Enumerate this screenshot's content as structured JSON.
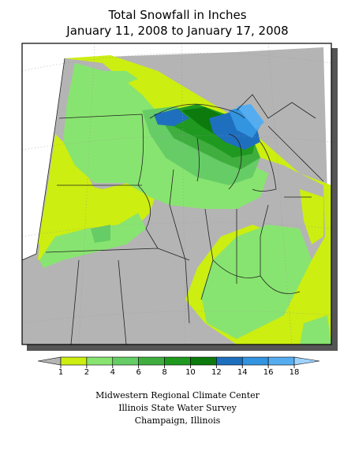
{
  "header": {
    "title": "Total Snowfall in Inches",
    "subtitle": "January 11, 2008 to January 17, 2008"
  },
  "legend": {
    "ticks": [
      1,
      2,
      4,
      6,
      8,
      10,
      12,
      14,
      16,
      18
    ],
    "colors": [
      "#b4b4b4",
      "#ccee11",
      "#88e470",
      "#66cc66",
      "#3fae3f",
      "#1f991f",
      "#0c7a0c",
      "#1f6fbf",
      "#3394e0",
      "#55adf0",
      "#9fd3ff"
    ]
  },
  "credits": [
    "Midwestern Regional Climate Center",
    "Illinois State Water Survey",
    "Champaign, Illinois"
  ]
}
